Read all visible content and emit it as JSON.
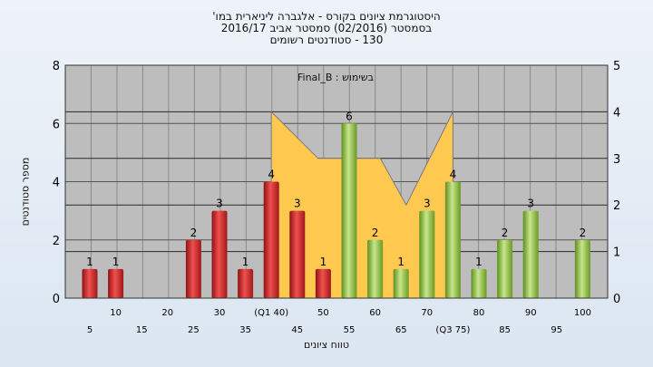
{
  "chart_data": {
    "type": "bar",
    "title_lines": [
      "היסטוגרמת ציונים בקורס - אלגברה ליניארית במו'",
      "בסמסטר  (02/2016)  סמסטר אביב 2016/17",
      "130 - סטודנטים רשומים"
    ],
    "filter_label": "בשימוש : Final_B",
    "xlabel": "טווח ציונים",
    "ylabel": "מספר סטודנטים",
    "ylim": [
      0,
      8
    ],
    "y2lim": [
      0,
      5
    ],
    "yticks": [
      0,
      2,
      4,
      6,
      8
    ],
    "y2ticks": [
      0,
      1,
      2,
      3,
      4,
      5
    ],
    "grid": true,
    "x_tick_labels": [
      {
        "x": 5,
        "label": "5",
        "row": 2
      },
      {
        "x": 10,
        "label": "10",
        "row": 1
      },
      {
        "x": 15,
        "label": "15",
        "row": 2
      },
      {
        "x": 20,
        "label": "20",
        "row": 1
      },
      {
        "x": 25,
        "label": "25",
        "row": 2
      },
      {
        "x": 30,
        "label": "30",
        "row": 1
      },
      {
        "x": 35,
        "label": "35",
        "row": 2
      },
      {
        "x": 40,
        "label": "(Q1 40)",
        "row": 1
      },
      {
        "x": 45,
        "label": "45",
        "row": 2
      },
      {
        "x": 50,
        "label": "50",
        "row": 1
      },
      {
        "x": 55,
        "label": "55",
        "row": 2
      },
      {
        "x": 60,
        "label": "60",
        "row": 1
      },
      {
        "x": 65,
        "label": "65",
        "row": 2
      },
      {
        "x": 70,
        "label": "70",
        "row": 1
      },
      {
        "x": 75,
        "label": "(Q3 75)",
        "row": 2
      },
      {
        "x": 80,
        "label": "80",
        "row": 1
      },
      {
        "x": 85,
        "label": "85",
        "row": 2
      },
      {
        "x": 90,
        "label": "90",
        "row": 1
      },
      {
        "x": 95,
        "label": "95",
        "row": 2
      },
      {
        "x": 100,
        "label": "100",
        "row": 1
      }
    ],
    "bars": [
      {
        "x": 5,
        "value": 1,
        "label": "1",
        "color": "red"
      },
      {
        "x": 10,
        "value": 1,
        "label": "1",
        "color": "red"
      },
      {
        "x": 25,
        "value": 2,
        "label": "2",
        "color": "red"
      },
      {
        "x": 30,
        "value": 3,
        "label": "3",
        "color": "red"
      },
      {
        "x": 35,
        "value": 1,
        "label": "1",
        "color": "red"
      },
      {
        "x": 40,
        "value": 4,
        "label": "4",
        "color": "red"
      },
      {
        "x": 45,
        "value": 3,
        "label": "3",
        "color": "red"
      },
      {
        "x": 50,
        "value": 1,
        "label": "1",
        "color": "red"
      },
      {
        "x": 55,
        "value": 6,
        "label": "6",
        "color": "green"
      },
      {
        "x": 60,
        "value": 2,
        "label": "2",
        "color": "green"
      },
      {
        "x": 65,
        "value": 1,
        "label": "1",
        "color": "green"
      },
      {
        "x": 70,
        "value": 3,
        "label": "3",
        "color": "green"
      },
      {
        "x": 75,
        "value": 4,
        "label": "4",
        "color": "green"
      },
      {
        "x": 80,
        "value": 1,
        "label": "1",
        "color": "green"
      },
      {
        "x": 85,
        "value": 2,
        "label": "2",
        "color": "green"
      },
      {
        "x": 90,
        "value": 3,
        "label": "3",
        "color": "green"
      },
      {
        "x": 100,
        "value": 2,
        "label": "2",
        "color": "green"
      }
    ],
    "area_series": {
      "axis": "right",
      "points": [
        {
          "x": 40,
          "y": 4
        },
        {
          "x": 49,
          "y": 3
        },
        {
          "x": 61,
          "y": 3
        },
        {
          "x": 66,
          "y": 2
        },
        {
          "x": 75,
          "y": 4
        }
      ],
      "color": "#ffc84f"
    },
    "colors": {
      "plot_bg": "#bdbdbd",
      "grid": "#8a8a8a",
      "red_bar": "#d42b2b",
      "green_bar": "#8cbf3c",
      "area": "#ffc84f"
    }
  }
}
